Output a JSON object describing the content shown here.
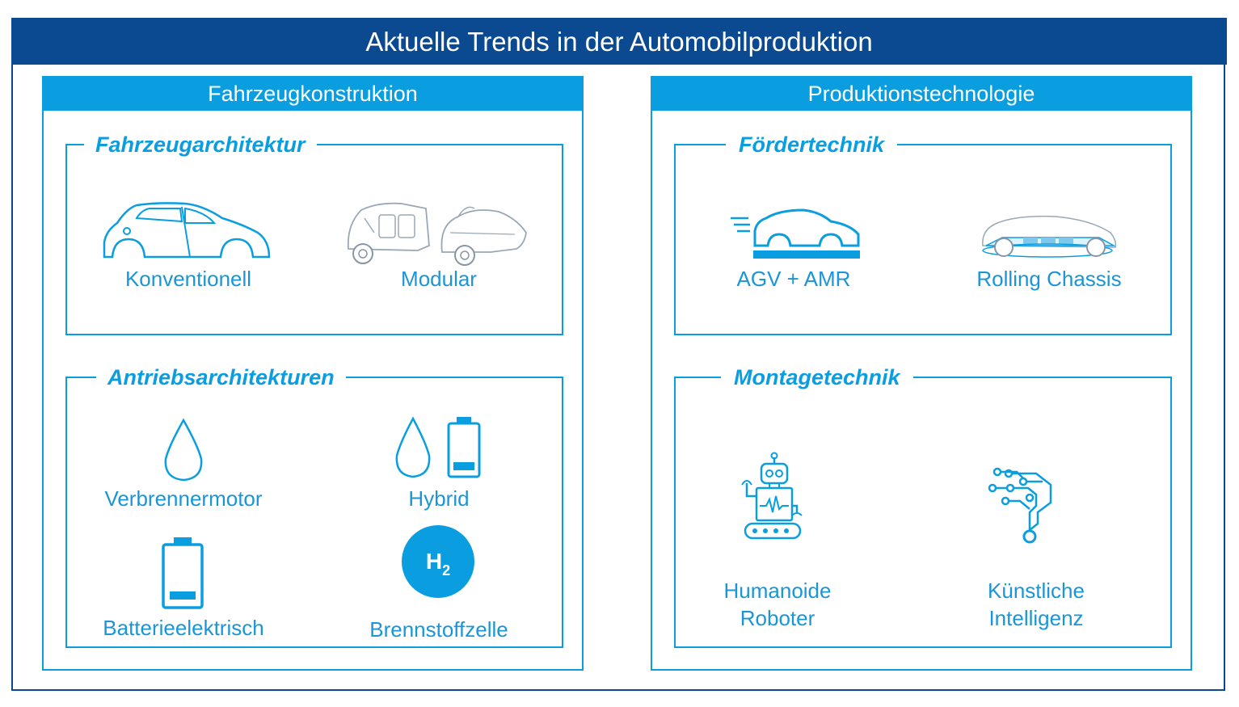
{
  "title": "Aktuelle Trends in der Automobilproduktion",
  "left_column": {
    "header": "Fahrzeugkonstruktion",
    "groups": [
      {
        "title": "Fahrzeugarchitektur",
        "items": [
          {
            "label": "Konventionell",
            "icon": "car-outline-icon"
          },
          {
            "label": "Modular",
            "icon": "modular-vehicle-icon"
          }
        ]
      },
      {
        "title": "Antriebsarchitekturen",
        "items": [
          {
            "label": "Verbrennermotor",
            "icon": "fuel-drop-icon"
          },
          {
            "label": "Hybrid",
            "icon": "drop-and-battery-icon"
          },
          {
            "label": "Batterieelektrisch",
            "icon": "battery-icon"
          },
          {
            "label": "Brennstoffzelle",
            "icon": "hydrogen-icon",
            "badge": "H",
            "badge_sub": "2"
          }
        ]
      }
    ]
  },
  "right_column": {
    "header": "Produktionstechnologie",
    "groups": [
      {
        "title": "Fördertechnik",
        "items": [
          {
            "label": "AGV + AMR",
            "icon": "agv-car-icon"
          },
          {
            "label": "Rolling Chassis",
            "icon": "rolling-chassis-icon"
          }
        ]
      },
      {
        "title": "Montagetechnik",
        "items": [
          {
            "label_line1": "Humanoide",
            "label_line2": "Roboter",
            "icon": "robot-icon"
          },
          {
            "label_line1": "Künstliche",
            "label_line2": "Intelligenz",
            "icon": "circuit-ai-icon"
          }
        ]
      }
    ]
  },
  "colors": {
    "title_bar": "#0b4a90",
    "accent": "#0a9ee0",
    "label_text": "#1a96d6"
  }
}
